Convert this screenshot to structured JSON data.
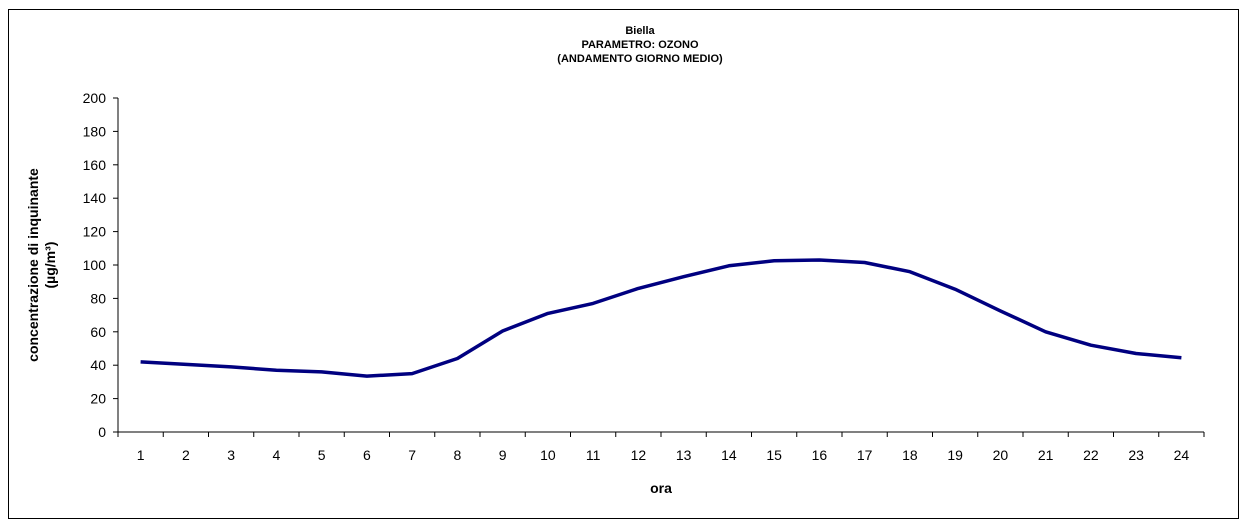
{
  "chart_data": {
    "type": "line",
    "title_lines": [
      "Biella",
      "PARAMETRO: OZONO",
      "(ANDAMENTO GIORNO MEDIO)"
    ],
    "xlabel": "ora",
    "ylabel_lines": [
      "concentrazione di inquinante",
      "(µg/m³)"
    ],
    "ylim": [
      0,
      200
    ],
    "yticks": [
      0,
      20,
      40,
      60,
      80,
      100,
      120,
      140,
      160,
      180,
      200
    ],
    "categories": [
      "1",
      "2",
      "3",
      "4",
      "5",
      "6",
      "7",
      "8",
      "9",
      "10",
      "11",
      "12",
      "13",
      "14",
      "15",
      "16",
      "17",
      "18",
      "19",
      "20",
      "21",
      "22",
      "23",
      "24"
    ],
    "series": [
      {
        "color": "#000080",
        "values": [
          42,
          40.5,
          39,
          37,
          36,
          33.5,
          35,
          44,
          60.5,
          71,
          77,
          86,
          93,
          99.5,
          102.5,
          103,
          101.5,
          96,
          85.5,
          72.5,
          60,
          52,
          47,
          44.5
        ]
      }
    ],
    "grid": false,
    "legend": "none"
  }
}
